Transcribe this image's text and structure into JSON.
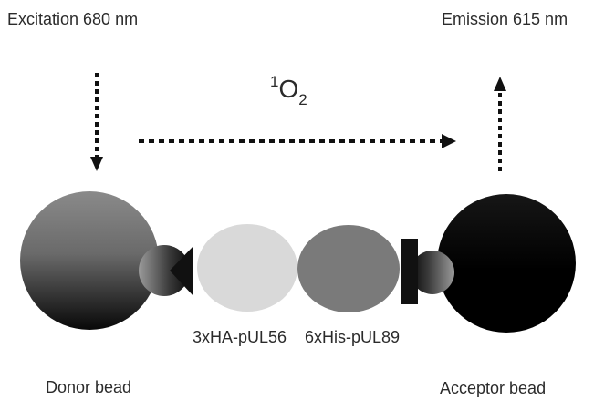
{
  "labels": {
    "excitation": "Excitation 680 nm",
    "emission": "Emission 615 nm",
    "singlet_oxygen": {
      "superscript": "1",
      "base": "O",
      "subscript": "2"
    },
    "protein_1": "3xHA-pUL56",
    "protein_2": "6xHis-pUL89",
    "donor_bead": "Donor bead",
    "acceptor_bead": "Acceptor bead"
  },
  "colors": {
    "text": "#2b2b2b",
    "arrow": "#111111",
    "protein_1_fill": "#d9d9d9",
    "protein_2_fill": "#7a7a7a",
    "linker_fill": "#111111"
  },
  "arrows": [
    {
      "name": "excitation-arrow",
      "direction": "down",
      "style": "dotted"
    },
    {
      "name": "singlet-oxygen-arrow",
      "direction": "right",
      "style": "dotted"
    },
    {
      "name": "emission-arrow",
      "direction": "up",
      "style": "dotted"
    }
  ]
}
